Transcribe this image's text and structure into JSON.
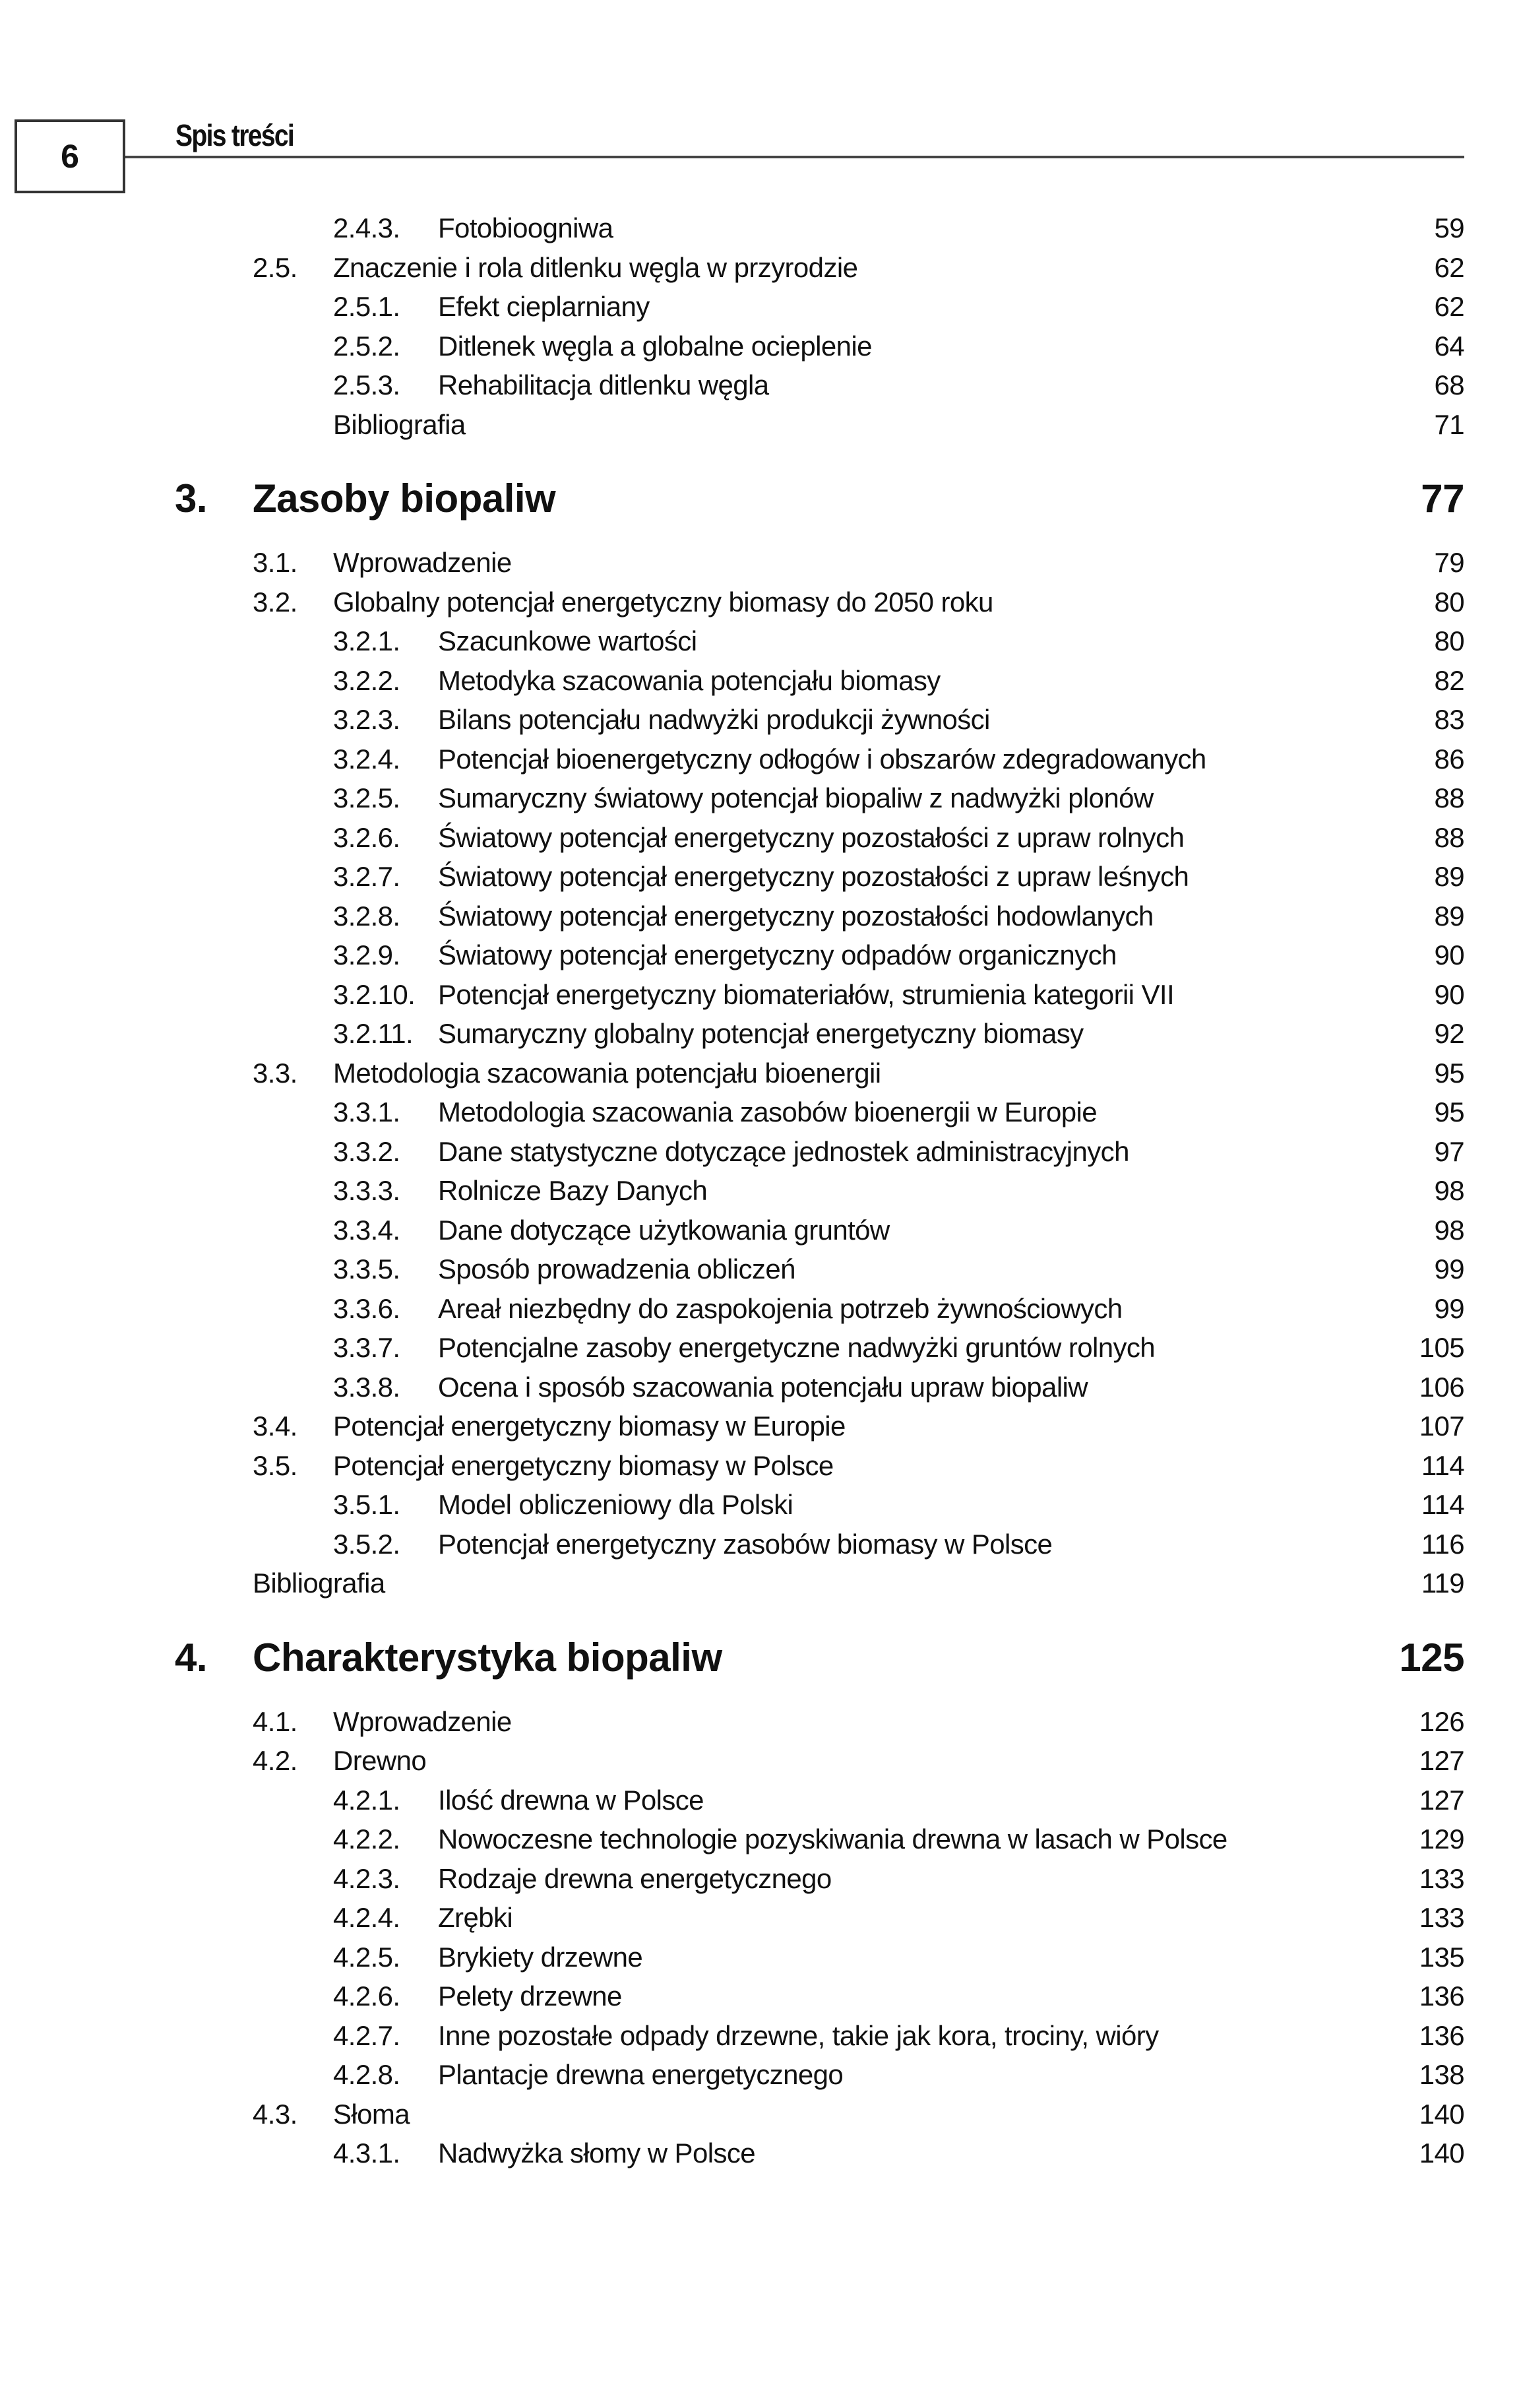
{
  "header": {
    "page_number": "6",
    "running_title": "Spis treści"
  },
  "entries": [
    {
      "type": "l3",
      "num": "2.4.3.",
      "title": "Fotobioogniwa",
      "page": "59"
    },
    {
      "type": "l2",
      "num": "2.5.",
      "title": "Znaczenie i rola ditlenku węgla w przyrodzie",
      "page": "62"
    },
    {
      "type": "l3",
      "num": "2.5.1.",
      "title": "Efekt cieplarniany",
      "page": "62"
    },
    {
      "type": "l3",
      "num": "2.5.2.",
      "title": "Ditlenek węgla a globalne ocieplenie",
      "page": "64"
    },
    {
      "type": "l3",
      "num": "2.5.3.",
      "title": "Rehabilitacja ditlenku węgla",
      "page": "68"
    },
    {
      "type": "bib2",
      "num": "",
      "title": "Bibliografia",
      "page": "71"
    },
    {
      "type": "chap",
      "num": "3.",
      "title": "Zasoby biopaliw",
      "page": "77"
    },
    {
      "type": "l2",
      "num": "3.1.",
      "title": "Wprowadzenie",
      "page": "79"
    },
    {
      "type": "l2",
      "num": "3.2.",
      "title": "Globalny potencjał energetyczny biomasy do 2050 roku",
      "page": "80"
    },
    {
      "type": "l3",
      "num": "3.2.1.",
      "title": "Szacunkowe wartości",
      "page": "80"
    },
    {
      "type": "l3",
      "num": "3.2.2.",
      "title": "Metodyka szacowania potencjału biomasy",
      "page": "82"
    },
    {
      "type": "l3",
      "num": "3.2.3.",
      "title": "Bilans potencjału nadwyżki produkcji żywności",
      "page": "83"
    },
    {
      "type": "l3",
      "num": "3.2.4.",
      "title": "Potencjał bioenergetyczny odłogów i obszarów zdegradowanych",
      "page": "86"
    },
    {
      "type": "l3",
      "num": "3.2.5.",
      "title": "Sumaryczny światowy potencjał biopaliw z nadwyżki plonów",
      "page": "88"
    },
    {
      "type": "l3",
      "num": "3.2.6.",
      "title": "Światowy potencjał energetyczny pozostałości z upraw rolnych",
      "page": "88"
    },
    {
      "type": "l3",
      "num": "3.2.7.",
      "title": "Światowy potencjał energetyczny pozostałości z upraw leśnych",
      "page": "89"
    },
    {
      "type": "l3",
      "num": "3.2.8.",
      "title": "Światowy potencjał energetyczny pozostałości hodowlanych",
      "page": "89"
    },
    {
      "type": "l3",
      "num": "3.2.9.",
      "title": "Światowy potencjał energetyczny odpadów organicznych",
      "page": "90"
    },
    {
      "type": "l3",
      "num": "3.2.10.",
      "title": "Potencjał energetyczny biomateriałów, strumienia kategorii VII",
      "page": "90"
    },
    {
      "type": "l3",
      "num": "3.2.11.",
      "title": "Sumaryczny globalny potencjał energetyczny biomasy",
      "page": "92"
    },
    {
      "type": "l2",
      "num": "3.3.",
      "title": "Metodologia szacowania potencjału bioenergii",
      "page": "95"
    },
    {
      "type": "l3",
      "num": "3.3.1.",
      "title": "Metodologia szacowania zasobów bioenergii w Europie",
      "page": "95"
    },
    {
      "type": "l3",
      "num": "3.3.2.",
      "title": "Dane statystyczne dotyczące jednostek administracyjnych",
      "page": "97"
    },
    {
      "type": "l3",
      "num": "3.3.3.",
      "title": "Rolnicze Bazy Danych",
      "page": "98"
    },
    {
      "type": "l3",
      "num": "3.3.4.",
      "title": "Dane dotyczące użytkowania gruntów",
      "page": "98"
    },
    {
      "type": "l3",
      "num": "3.3.5.",
      "title": "Sposób prowadzenia obliczeń",
      "page": "99"
    },
    {
      "type": "l3",
      "num": "3.3.6.",
      "title": "Areał niezbędny do zaspokojenia potrzeb żywnościowych",
      "page": "99"
    },
    {
      "type": "l3",
      "num": "3.3.7.",
      "title": "Potencjalne zasoby energetyczne nadwyżki gruntów rolnych",
      "page": "105"
    },
    {
      "type": "l3",
      "num": "3.3.8.",
      "title": "Ocena i sposób szacowania potencjału upraw biopaliw",
      "page": "106"
    },
    {
      "type": "l2",
      "num": "3.4.",
      "title": "Potencjał energetyczny biomasy w Europie",
      "page": "107"
    },
    {
      "type": "l2",
      "num": "3.5.",
      "title": "Potencjał energetyczny biomasy w Polsce",
      "page": "114"
    },
    {
      "type": "l3",
      "num": "3.5.1.",
      "title": "Model obliczeniowy dla Polski",
      "page": "114"
    },
    {
      "type": "l3",
      "num": "3.5.2.",
      "title": "Potencjał energetyczny zasobów biomasy w Polsce",
      "page": "116"
    },
    {
      "type": "bib1",
      "num": "",
      "title": "Bibliografia",
      "page": "119"
    },
    {
      "type": "chap",
      "num": "4.",
      "title": "Charakterystyka biopaliw",
      "page": "125"
    },
    {
      "type": "l2",
      "num": "4.1.",
      "title": "Wprowadzenie",
      "page": "126"
    },
    {
      "type": "l2",
      "num": "4.2.",
      "title": "Drewno",
      "page": "127"
    },
    {
      "type": "l3",
      "num": "4.2.1.",
      "title": "Ilość drewna w Polsce",
      "page": "127"
    },
    {
      "type": "l3",
      "num": "4.2.2.",
      "title": "Nowoczesne technologie pozyskiwania drewna w lasach w Polsce",
      "page": "129"
    },
    {
      "type": "l3",
      "num": "4.2.3.",
      "title": "Rodzaje drewna energetycznego",
      "page": "133"
    },
    {
      "type": "l3",
      "num": "4.2.4.",
      "title": "Zrębki",
      "page": "133"
    },
    {
      "type": "l3",
      "num": "4.2.5.",
      "title": "Brykiety drzewne",
      "page": "135"
    },
    {
      "type": "l3",
      "num": "4.2.6.",
      "title": "Pelety drzewne",
      "page": "136"
    },
    {
      "type": "l3",
      "num": "4.2.7.",
      "title": "Inne pozostałe odpady drzewne, takie jak kora, trociny, wióry",
      "page": "136"
    },
    {
      "type": "l3",
      "num": "4.2.8.",
      "title": "Plantacje drewna energetycznego",
      "page": "138"
    },
    {
      "type": "l2",
      "num": "4.3.",
      "title": "Słoma",
      "page": "140"
    },
    {
      "type": "l3",
      "num": "4.3.1.",
      "title": "Nadwyżka słomy w Polsce",
      "page": "140"
    }
  ]
}
